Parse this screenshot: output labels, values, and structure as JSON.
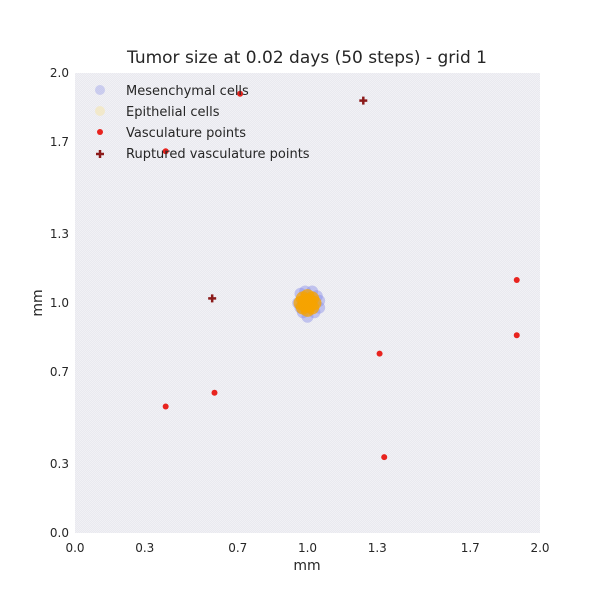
{
  "chart_data": {
    "type": "scatter",
    "title": "Tumor size at 0.02 days (50 steps) - grid 1",
    "xlabel": "mm",
    "ylabel": "mm",
    "xlim": [
      0.0,
      2.0
    ],
    "ylim": [
      0.0,
      2.0
    ],
    "xticks": [
      "0.0",
      "0.3",
      "0.7",
      "1.0",
      "1.3",
      "1.7",
      "2.0"
    ],
    "yticks": [
      "0.0",
      "0.3",
      "0.7",
      "1.0",
      "1.3",
      "1.7",
      "2.0"
    ],
    "grid": false,
    "legend_position": "top-left",
    "series": [
      {
        "name": "Mesenchymal cells",
        "color": "#8a8ee8",
        "marker": "circle",
        "points": [
          [
            0.97,
            1.04
          ],
          [
            1.02,
            1.05
          ],
          [
            1.05,
            1.01
          ],
          [
            1.03,
            0.96
          ],
          [
            0.98,
            0.96
          ],
          [
            0.96,
            1.0
          ],
          [
            1.0,
            0.94
          ],
          [
            1.04,
            1.03
          ],
          [
            0.99,
            1.05
          ],
          [
            1.05,
            0.98
          ],
          [
            0.97,
            0.98
          ],
          [
            1.01,
            1.0
          ]
        ]
      },
      {
        "name": "Epithelial cells",
        "color": "#f5a300",
        "marker": "circle",
        "points": [
          [
            1.0,
            1.0
          ],
          [
            0.98,
            1.02
          ],
          [
            1.02,
            1.02
          ],
          [
            1.02,
            0.98
          ],
          [
            0.98,
            0.98
          ],
          [
            1.0,
            1.03
          ],
          [
            1.03,
            1.0
          ],
          [
            1.0,
            0.97
          ],
          [
            0.97,
            1.0
          ],
          [
            1.01,
            1.01
          ],
          [
            0.99,
            0.99
          ],
          [
            1.01,
            0.99
          ],
          [
            0.99,
            1.01
          ]
        ]
      },
      {
        "name": "Vasculature points",
        "color": "#e8231e",
        "marker": "dot",
        "points": [
          [
            0.71,
            1.91
          ],
          [
            0.39,
            1.66
          ],
          [
            1.9,
            1.1
          ],
          [
            1.9,
            0.86
          ],
          [
            1.31,
            0.78
          ],
          [
            0.6,
            0.61
          ],
          [
            0.39,
            0.55
          ],
          [
            1.33,
            0.33
          ]
        ]
      },
      {
        "name": "Ruptured vasculature points",
        "color": "#8b1a1a",
        "marker": "plus",
        "points": [
          [
            1.24,
            1.88
          ],
          [
            0.59,
            1.02
          ]
        ]
      }
    ]
  }
}
